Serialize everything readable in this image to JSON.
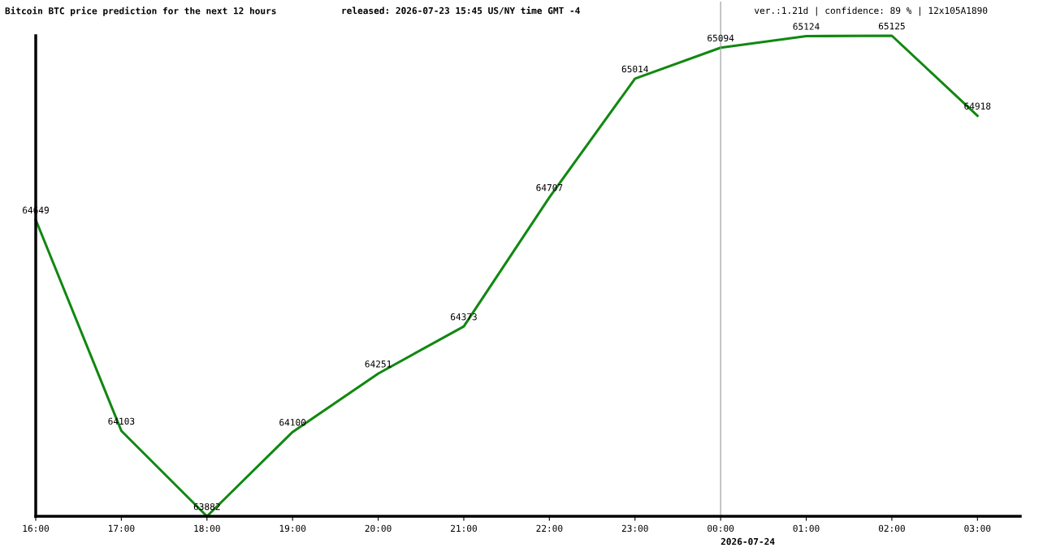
{
  "chart_data": {
    "type": "line",
    "title": "Bitcoin BTC price prediction for the next 12 hours",
    "subtitle": "released: 2026-07-23 15:45 US/NY time GMT -4",
    "annotations": [
      "ver.:1.21d | confidence: 89 % | 12x105A1890"
    ],
    "categories": [
      "16:00",
      "17:00",
      "18:00",
      "19:00",
      "20:00",
      "21:00",
      "22:00",
      "23:00",
      "00:00",
      "01:00",
      "02:00",
      "03:00"
    ],
    "series": [
      {
        "color": "#118811",
        "values": [
          64649,
          64103,
          63882,
          64100,
          64251,
          64373,
          64707,
          65014,
          65094,
          65124,
          65125,
          64918
        ]
      }
    ],
    "ylim": [
      63882,
      65125
    ],
    "tick_labels": "x",
    "data_labels": true,
    "grid": false,
    "legend": false,
    "marker": "none",
    "line_style": "solid",
    "ref_lines": [
      {
        "axis": "x",
        "value": "00:00",
        "label": "2026-07-24",
        "color": "#999999"
      }
    ]
  }
}
